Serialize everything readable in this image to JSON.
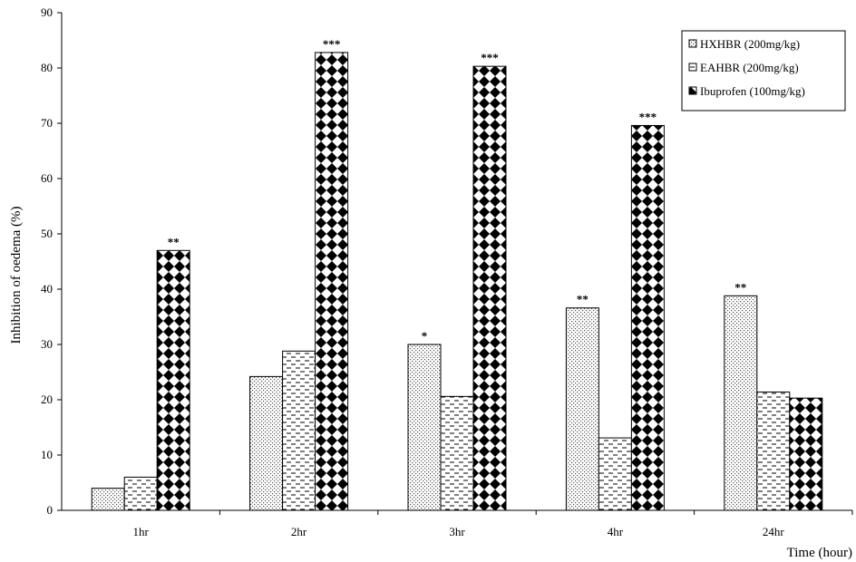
{
  "chart_data": {
    "type": "bar",
    "xlabel": "Time (hour)",
    "ylabel": "Inhibition of oedema (%)",
    "ylim": [
      0,
      90
    ],
    "y_ticks": [
      0,
      10,
      20,
      30,
      40,
      50,
      60,
      70,
      80,
      90
    ],
    "grid": false,
    "legend_position": "top-right",
    "categories": [
      "1hr",
      "2hr",
      "3hr",
      "4hr",
      "24hr"
    ],
    "series": [
      {
        "name": "HXHBR (200mg/kg)",
        "pattern": "dots",
        "values": [
          4.0,
          24.2,
          30.0,
          36.6,
          38.8
        ],
        "annotations": [
          "",
          "",
          "*",
          "**",
          "**"
        ]
      },
      {
        "name": "EAHBR (200mg/kg)",
        "pattern": "dashes",
        "values": [
          6.0,
          28.8,
          20.6,
          13.1,
          21.4
        ],
        "annotations": [
          "",
          "",
          "",
          "",
          ""
        ]
      },
      {
        "name": "Ibuprofen (100mg/kg)",
        "pattern": "diamonds",
        "values": [
          47.0,
          82.8,
          80.3,
          69.6,
          20.3
        ],
        "annotations": [
          "**",
          "***",
          "***",
          "***",
          ""
        ]
      }
    ]
  }
}
